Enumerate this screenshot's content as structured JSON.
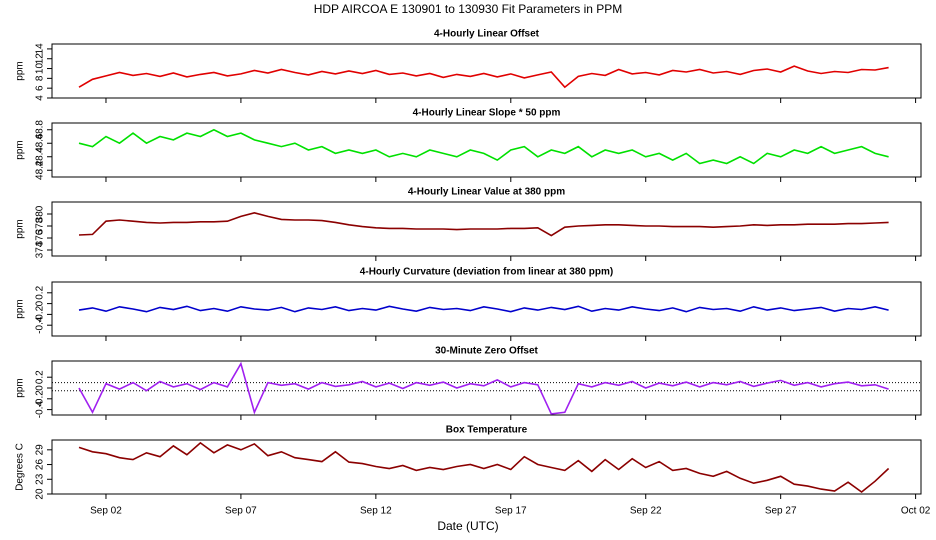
{
  "title": "HDP   AIRCOA E   130901 to 130930   Fit Parameters in PPM",
  "x_axis": {
    "label": "Date (UTC)",
    "xlim": [
      0,
      32.2
    ],
    "xticks": [
      {
        "value": 2,
        "label": "Sep 02"
      },
      {
        "value": 7,
        "label": "Sep 07"
      },
      {
        "value": 12,
        "label": "Sep 12"
      },
      {
        "value": 17,
        "label": "Sep 17"
      },
      {
        "value": 22,
        "label": "Sep 22"
      },
      {
        "value": 27,
        "label": "Sep 27"
      },
      {
        "value": 32,
        "label": "Oct 02"
      }
    ],
    "x": [
      1,
      1.5,
      2,
      2.5,
      3,
      3.5,
      4,
      4.5,
      5,
      5.5,
      6,
      6.5,
      7,
      7.5,
      8,
      8.5,
      9,
      9.5,
      10,
      10.5,
      11,
      11.5,
      12,
      12.5,
      13,
      13.5,
      14,
      14.5,
      15,
      15.5,
      16,
      16.5,
      17,
      17.5,
      18,
      18.5,
      19,
      19.5,
      20,
      20.5,
      21,
      21.5,
      22,
      22.5,
      23,
      23.5,
      24,
      24.5,
      25,
      25.5,
      26,
      26.5,
      27,
      27.5,
      28,
      28.5,
      29,
      29.5,
      30,
      30.5,
      31
    ]
  },
  "chart_data": [
    {
      "type": "line",
      "title": "4-Hourly Linear Offset",
      "ylabel": "ppm",
      "color": "#e00000",
      "ylim": [
        4,
        15
      ],
      "yticks": [
        4,
        6,
        8,
        10,
        12,
        14
      ],
      "values": [
        6.2,
        7.8,
        8.5,
        9.2,
        8.6,
        9.0,
        8.4,
        9.1,
        8.3,
        8.8,
        9.2,
        8.5,
        8.9,
        9.6,
        9.1,
        9.8,
        9.2,
        8.7,
        9.4,
        8.9,
        9.5,
        9.0,
        9.6,
        8.8,
        9.1,
        8.5,
        9.0,
        8.2,
        8.8,
        8.4,
        9.0,
        8.3,
        8.9,
        8.1,
        8.7,
        9.3,
        6.2,
        8.4,
        9.0,
        8.6,
        9.8,
        8.9,
        9.2,
        8.7,
        9.6,
        9.3,
        9.8,
        9.1,
        9.4,
        8.8,
        9.6,
        9.9,
        9.3,
        10.5,
        9.5,
        9.0,
        9.4,
        9.2,
        9.8,
        9.7,
        10.2
      ]
    },
    {
      "type": "line",
      "title": "4-Hourly Linear Slope * 50 ppm",
      "ylabel": "ppm",
      "color": "#00e000",
      "ylim": [
        48.1,
        48.9
      ],
      "yticks": [
        48.2,
        48.4,
        48.6,
        48.8
      ],
      "values": [
        48.6,
        48.55,
        48.7,
        48.6,
        48.75,
        48.6,
        48.7,
        48.65,
        48.75,
        48.7,
        48.8,
        48.7,
        48.75,
        48.65,
        48.6,
        48.55,
        48.6,
        48.5,
        48.55,
        48.45,
        48.5,
        48.45,
        48.5,
        48.4,
        48.45,
        48.4,
        48.5,
        48.45,
        48.4,
        48.5,
        48.45,
        48.35,
        48.5,
        48.55,
        48.4,
        48.5,
        48.45,
        48.55,
        48.4,
        48.5,
        48.45,
        48.5,
        48.4,
        48.45,
        48.35,
        48.45,
        48.3,
        48.35,
        48.3,
        48.4,
        48.3,
        48.45,
        48.4,
        48.5,
        48.45,
        48.55,
        48.45,
        48.5,
        48.55,
        48.45,
        48.4
      ]
    },
    {
      "type": "line",
      "title": "4-Hourly Linear Value at 380 ppm",
      "ylabel": "ppm",
      "color": "#8b0000",
      "ylim": [
        373,
        382
      ],
      "yticks": [
        374,
        376,
        378,
        380
      ],
      "values": [
        376.5,
        376.6,
        378.8,
        379.0,
        378.8,
        378.6,
        378.5,
        378.6,
        378.6,
        378.7,
        378.7,
        378.8,
        379.6,
        380.2,
        379.6,
        379.1,
        379.0,
        379.0,
        378.9,
        378.6,
        378.2,
        377.9,
        377.7,
        377.6,
        377.6,
        377.5,
        377.5,
        377.5,
        377.4,
        377.5,
        377.5,
        377.5,
        377.6,
        377.6,
        377.7,
        376.4,
        377.8,
        378.0,
        378.1,
        378.2,
        378.2,
        378.1,
        378.0,
        378.0,
        377.9,
        377.9,
        377.9,
        377.8,
        377.9,
        378.0,
        378.2,
        378.1,
        378.2,
        378.2,
        378.3,
        378.3,
        378.3,
        378.4,
        378.4,
        378.5,
        378.6
      ]
    },
    {
      "type": "line",
      "title": "4-Hourly Curvature (deviation from linear at 380 ppm)",
      "ylabel": "ppm",
      "color": "#0000cc",
      "ylim": [
        -0.6,
        0.4
      ],
      "yticks": [
        -0.4,
        -0.2,
        0,
        0.2
      ],
      "values": [
        -0.12,
        -0.08,
        -0.14,
        -0.06,
        -0.1,
        -0.15,
        -0.07,
        -0.11,
        -0.05,
        -0.13,
        -0.09,
        -0.14,
        -0.06,
        -0.1,
        -0.12,
        -0.07,
        -0.15,
        -0.08,
        -0.11,
        -0.06,
        -0.13,
        -0.09,
        -0.12,
        -0.05,
        -0.1,
        -0.14,
        -0.07,
        -0.11,
        -0.09,
        -0.13,
        -0.06,
        -0.1,
        -0.15,
        -0.08,
        -0.12,
        -0.07,
        -0.11,
        -0.05,
        -0.14,
        -0.09,
        -0.12,
        -0.06,
        -0.1,
        -0.13,
        -0.08,
        -0.15,
        -0.07,
        -0.11,
        -0.09,
        -0.14,
        -0.06,
        -0.12,
        -0.08,
        -0.13,
        -0.1,
        -0.07,
        -0.14,
        -0.09,
        -0.11,
        -0.06,
        -0.12
      ]
    },
    {
      "type": "line",
      "title": "30-Minute Zero Offset",
      "ylabel": "ppm",
      "color": "#a020f0",
      "ylim": [
        -0.5,
        0.5
      ],
      "yticks": [
        -0.4,
        -0.2,
        0,
        0.2
      ],
      "reference_lines": [
        0.1,
        -0.05
      ],
      "values": [
        0,
        -0.45,
        0.08,
        -0.02,
        0.1,
        -0.05,
        0.12,
        0.02,
        0.08,
        -0.03,
        0.1,
        0.02,
        0.45,
        -0.45,
        0.1,
        0.05,
        0.08,
        -0.02,
        0.1,
        0.03,
        0.06,
        0.12,
        0.02,
        0.09,
        -0.01,
        0.1,
        0.05,
        0.11,
        0.0,
        0.08,
        0.04,
        0.15,
        0.02,
        0.1,
        0.06,
        -0.48,
        -0.45,
        0.08,
        0.02,
        0.1,
        0.05,
        0.12,
        0.0,
        0.09,
        0.04,
        0.11,
        0.02,
        0.1,
        0.06,
        0.12,
        0.03,
        0.09,
        0.14,
        0.05,
        0.1,
        0.02,
        0.08,
        0.11,
        0.04,
        0.06,
        -0.02
      ]
    },
    {
      "type": "line",
      "title": "Box Temperature",
      "ylabel": "Degrees C",
      "color": "#8b0000",
      "ylim": [
        20,
        31
      ],
      "yticks": [
        20,
        23,
        26,
        29
      ],
      "values": [
        29.5,
        28.6,
        28.2,
        27.4,
        27.0,
        28.4,
        27.6,
        29.8,
        28.0,
        30.4,
        28.4,
        30.0,
        29.0,
        30.2,
        27.8,
        28.6,
        27.4,
        27.0,
        26.6,
        28.6,
        26.5,
        26.2,
        25.6,
        25.2,
        25.8,
        24.8,
        25.4,
        25.0,
        25.6,
        26.0,
        25.2,
        26.0,
        25.0,
        27.6,
        26.0,
        25.4,
        24.8,
        26.8,
        24.6,
        27.0,
        25.0,
        27.2,
        25.4,
        26.6,
        24.8,
        25.2,
        24.2,
        23.6,
        24.6,
        23.2,
        22.2,
        22.8,
        23.6,
        22.0,
        21.6,
        21.0,
        20.6,
        22.4,
        20.4,
        22.6,
        25.2
      ]
    }
  ]
}
